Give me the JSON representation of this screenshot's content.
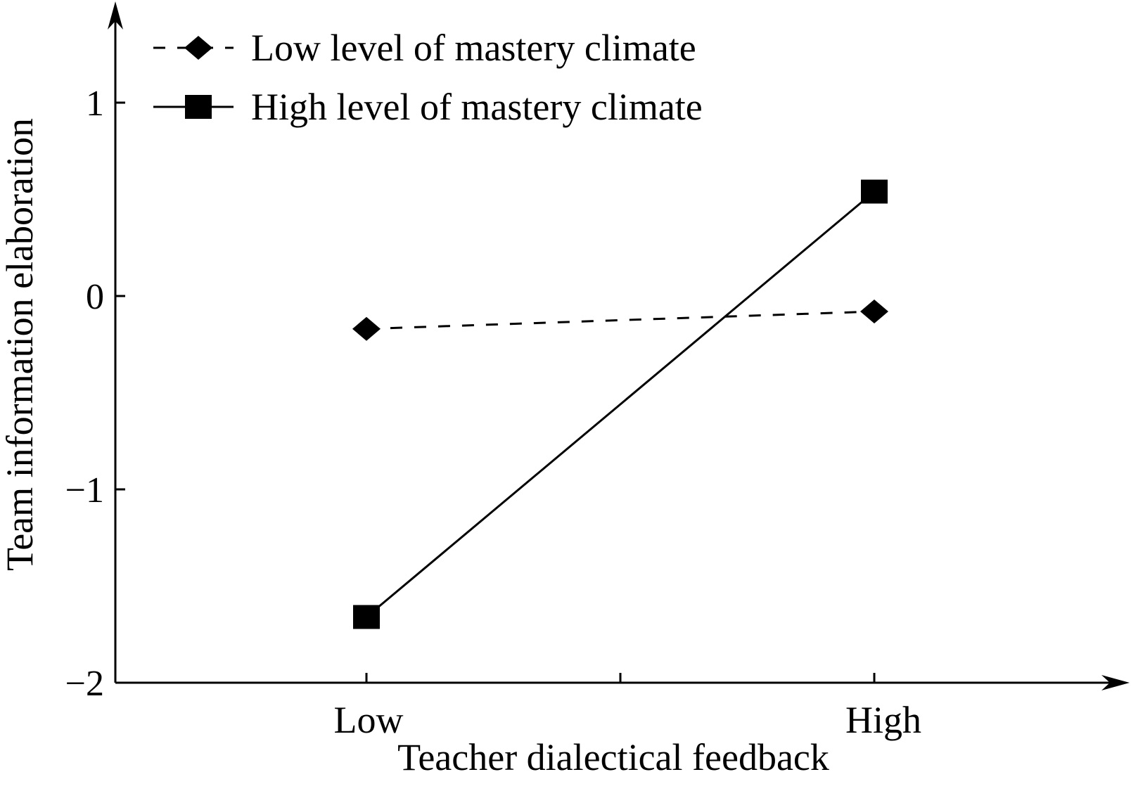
{
  "chart_data": {
    "type": "line",
    "title": "",
    "xlabel": "Teacher dialectical feedback",
    "ylabel": "Team information elaboration",
    "categories": [
      "Low",
      "High"
    ],
    "ylim": [
      -2,
      1.4
    ],
    "yticks": [
      1,
      0,
      -1,
      -2
    ],
    "ytick_labels": [
      "1",
      "0",
      "−1",
      "−2"
    ],
    "grid": false,
    "legend_position": "top-left",
    "series": [
      {
        "name": "Low level of mastery climate",
        "values": [
          -0.17,
          -0.08
        ],
        "line_style": "dashed",
        "marker": "diamond",
        "color": "#000000"
      },
      {
        "name": "High level of mastery climate",
        "values": [
          -1.66,
          0.54
        ],
        "line_style": "solid",
        "marker": "square",
        "color": "#000000"
      }
    ]
  }
}
